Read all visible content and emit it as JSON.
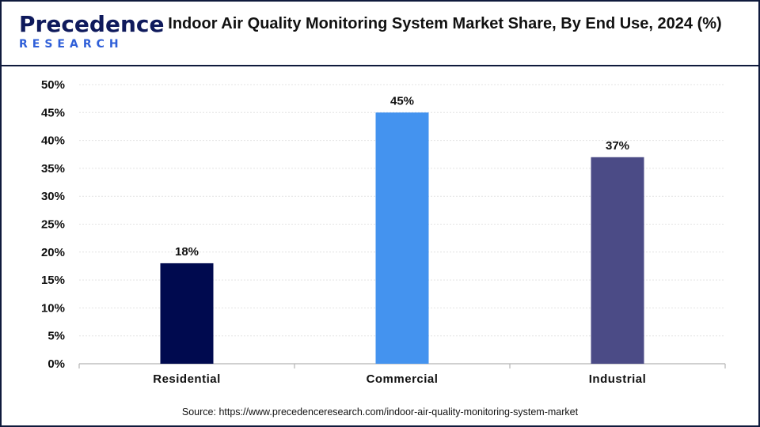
{
  "brand": {
    "name_main": "Precedence",
    "name_sub": "RESEARCH"
  },
  "chart_data": {
    "type": "bar",
    "title": "Indoor Air Quality Monitoring System Market Share, By End Use, 2024 (%)",
    "categories": [
      "Residential",
      "Commercial",
      "Industrial"
    ],
    "values": [
      18,
      45,
      37
    ],
    "value_labels": [
      "18%",
      "45%",
      "37%"
    ],
    "colors": [
      "#000a4f",
      "#4493ef",
      "#4b4b86"
    ],
    "ylim": [
      0,
      50
    ],
    "yticks": [
      0,
      5,
      10,
      15,
      20,
      25,
      30,
      35,
      40,
      45,
      50
    ],
    "ytick_labels": [
      "0%",
      "5%",
      "10%",
      "15%",
      "20%",
      "25%",
      "30%",
      "35%",
      "40%",
      "45%",
      "50%"
    ],
    "grid": true,
    "legend": "none"
  },
  "source": "Source: https://www.precedenceresearch.com/indoor-air-quality-monitoring-system-market"
}
